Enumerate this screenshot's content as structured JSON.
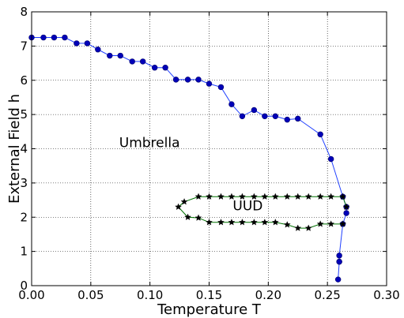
{
  "chart_data": {
    "type": "line",
    "xlabel": "Temperature T",
    "ylabel": "External Field h",
    "xlim": [
      0.0,
      0.3
    ],
    "ylim": [
      0,
      8
    ],
    "xticks": [
      0.0,
      0.05,
      0.1,
      0.15,
      0.2,
      0.25,
      0.3
    ],
    "xtick_labels": [
      "0.00",
      "0.05",
      "0.10",
      "0.15",
      "0.20",
      "0.25",
      "0.30"
    ],
    "yticks": [
      0,
      1,
      2,
      3,
      4,
      5,
      6,
      7,
      8
    ],
    "ytick_labels": [
      "0",
      "1",
      "2",
      "3",
      "4",
      "5",
      "6",
      "7",
      "8"
    ],
    "grid": true,
    "annotations": [
      {
        "text": "Umbrella",
        "x": 0.074,
        "y": 4.05
      },
      {
        "text": "UUD",
        "x": 0.17,
        "y": 2.2
      }
    ],
    "series": [
      {
        "marker": "circle",
        "color": "#0000b8",
        "line_color": "#2040ff",
        "x": [
          0.0,
          0.01,
          0.019,
          0.028,
          0.038,
          0.047,
          0.056,
          0.066,
          0.075,
          0.085,
          0.094,
          0.104,
          0.113,
          0.122,
          0.132,
          0.141,
          0.15,
          0.16,
          0.169,
          0.178,
          0.188,
          0.197,
          0.206,
          0.216,
          0.225,
          0.244,
          0.253,
          0.263,
          0.266,
          0.266,
          0.263,
          0.26,
          0.26,
          0.26,
          0.259
        ],
        "y": [
          7.25,
          7.25,
          7.25,
          7.25,
          7.08,
          7.08,
          6.9,
          6.72,
          6.72,
          6.55,
          6.55,
          6.37,
          6.37,
          6.02,
          6.02,
          6.02,
          5.9,
          5.8,
          5.3,
          4.95,
          5.13,
          4.95,
          4.95,
          4.85,
          4.88,
          4.42,
          3.7,
          2.6,
          2.3,
          2.12,
          1.8,
          0.88,
          0.7,
          0.7,
          0.18
        ]
      },
      {
        "marker": "star",
        "color": "#000000",
        "line_color": "#007000",
        "x": [
          0.263,
          0.253,
          0.244,
          0.234,
          0.225,
          0.216,
          0.206,
          0.197,
          0.188,
          0.178,
          0.169,
          0.16,
          0.15,
          0.141,
          0.132,
          0.124,
          0.129,
          0.141,
          0.15,
          0.16,
          0.169,
          0.178,
          0.188,
          0.197,
          0.206,
          0.216,
          0.225,
          0.234,
          0.244,
          0.253,
          0.263,
          0.266
        ],
        "y": [
          1.8,
          1.8,
          1.8,
          1.68,
          1.68,
          1.78,
          1.85,
          1.85,
          1.85,
          1.85,
          1.85,
          1.85,
          1.85,
          1.98,
          2.0,
          2.3,
          2.45,
          2.6,
          2.6,
          2.6,
          2.6,
          2.6,
          2.6,
          2.6,
          2.6,
          2.6,
          2.6,
          2.6,
          2.6,
          2.6,
          2.6,
          2.3
        ]
      }
    ]
  }
}
